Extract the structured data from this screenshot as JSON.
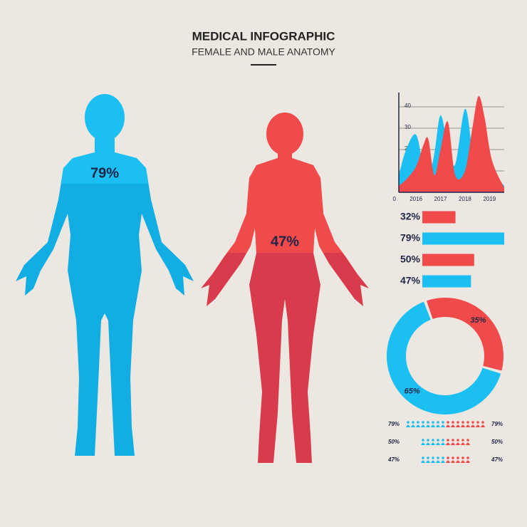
{
  "header": {
    "title": "MEDICAL INFOGRAPHIC",
    "subtitle": "FEMALE AND MALE ANATOMY"
  },
  "figures": [
    {
      "label": "79%",
      "color": "#1cbff1",
      "lower_color": "#12ade3"
    },
    {
      "label": "47%",
      "color": "#f14a4b",
      "lower_color": "#d83c4c"
    }
  ],
  "chart_data": [
    {
      "type": "area",
      "x": [
        2015.3,
        2015.6,
        2016.0,
        2016.3,
        2016.5,
        2016.75,
        2017.0,
        2017.3,
        2017.6,
        2018.0,
        2018.3,
        2018.55,
        2018.8,
        2019.1,
        2019.6
      ],
      "xlim": [
        2015.3,
        2019.6
      ],
      "xticks": [
        2016,
        2017,
        2018,
        2019
      ],
      "ylim": [
        0,
        45
      ],
      "yticks": [
        0,
        10,
        20,
        30,
        40
      ],
      "grid": true,
      "series": [
        {
          "color": "#1cbff1",
          "values": [
            8,
            20,
            27,
            12,
            7,
            18,
            36,
            22,
            13,
            39,
            20,
            8,
            7,
            9,
            3
          ]
        },
        {
          "color": "#f14a4b",
          "values": [
            3,
            6,
            12,
            22,
            25,
            8,
            20,
            33,
            8,
            10,
            30,
            45,
            35,
            15,
            2
          ]
        }
      ]
    },
    {
      "type": "hbar",
      "values": [
        32,
        79,
        50,
        47
      ],
      "value_labels": [
        "32%",
        "79%",
        "50%",
        "47%"
      ],
      "colors": [
        "#f14a4b",
        "#1cbff1",
        "#f14a4b",
        "#1cbff1"
      ],
      "xlim": [
        0,
        79
      ]
    },
    {
      "type": "donut",
      "values": [
        35,
        65
      ],
      "value_labels": [
        "35%",
        "65%"
      ],
      "colors": [
        "#f14a4b",
        "#1cbff1"
      ]
    },
    {
      "type": "pictograph",
      "values": [
        79,
        50,
        47
      ],
      "value_labels": [
        "79%",
        "50%",
        "47%"
      ],
      "colors": [
        "#1cbff1",
        "#f14a4b"
      ]
    }
  ]
}
